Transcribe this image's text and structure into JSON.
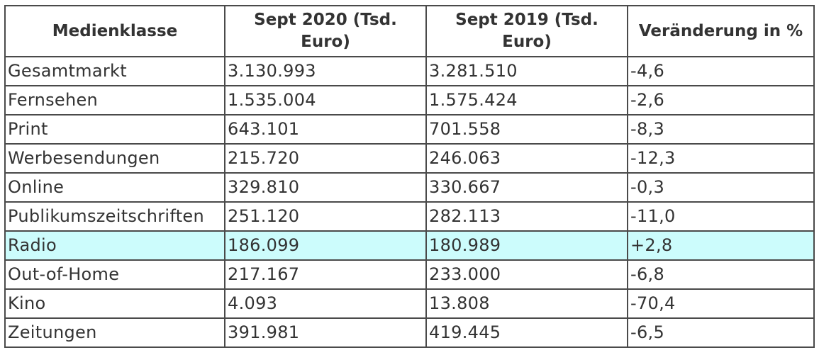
{
  "table": {
    "columns": [
      "Medienklasse",
      "Sept 2020 (Tsd. Euro)",
      "Sept 2019 (Tsd. Euro)",
      "Veränderung in %"
    ],
    "rows": [
      [
        "Gesamtmarkt",
        "3.130.993",
        "3.281.510",
        "-4,6"
      ],
      [
        "Fernsehen",
        "1.535.004",
        "1.575.424",
        "-2,6"
      ],
      [
        "Print",
        "643.101",
        "701.558",
        "-8,3"
      ],
      [
        "Werbesendungen",
        "215.720",
        "246.063",
        "-12,3"
      ],
      [
        "Online",
        "329.810",
        "330.667",
        "-0,3"
      ],
      [
        "Publikumszeitschriften",
        "251.120",
        "282.113",
        "-11,0"
      ],
      [
        "Radio",
        "186.099",
        "180.989",
        "+2,8"
      ],
      [
        "Out-of-Home",
        "217.167",
        "233.000",
        "-6,8"
      ],
      [
        "Kino",
        "4.093",
        "13.808",
        "-70,4"
      ],
      [
        "Zeitungen",
        "391.981",
        "419.445",
        "-6,5"
      ]
    ]
  }
}
